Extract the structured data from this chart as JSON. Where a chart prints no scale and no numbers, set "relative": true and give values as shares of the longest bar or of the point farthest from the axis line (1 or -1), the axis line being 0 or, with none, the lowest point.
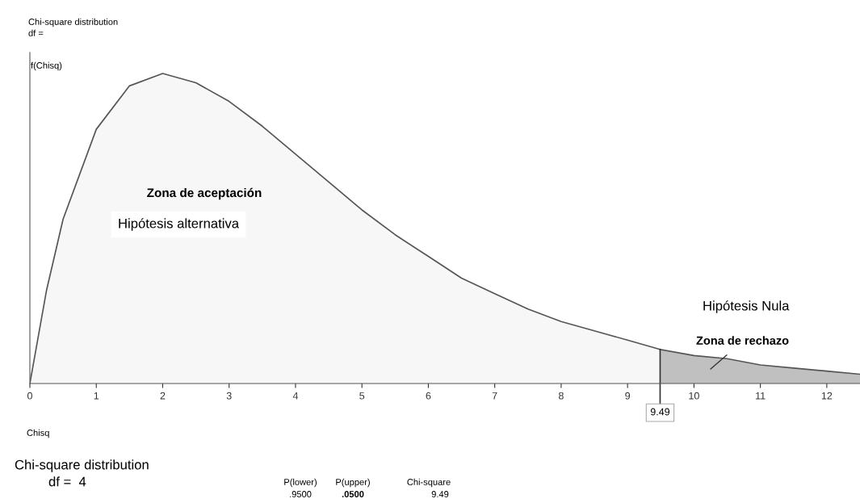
{
  "chart_data": {
    "type": "area",
    "title": "Chi-square distribution",
    "subtitle": "df =",
    "xlabel": "Chisq",
    "ylabel": "f(Chisq)",
    "relative": true,
    "series": [
      {
        "color": "#f7f7f7",
        "x": [
          0,
          0.25,
          0.5,
          1,
          1.5,
          2,
          2.5,
          3,
          3.5,
          4,
          4.5,
          5,
          5.5,
          6,
          6.5,
          7,
          7.5,
          8,
          8.5,
          9,
          9.49
        ],
        "values": [
          0,
          0.3,
          0.53,
          0.82,
          0.96,
          1,
          0.97,
          0.91,
          0.83,
          0.74,
          0.65,
          0.56,
          0.48,
          0.41,
          0.34,
          0.29,
          0.24,
          0.2,
          0.17,
          0.14,
          0.11
        ]
      },
      {
        "color": "#c0c0c0",
        "x": [
          9.49,
          10,
          10.5,
          11,
          11.5,
          12,
          12.5
        ],
        "values": [
          0.11,
          0.09,
          0.08,
          0.06,
          0.05,
          0.04,
          0.03
        ]
      }
    ],
    "ref_lines": [
      {
        "axis": "x",
        "value": 9.49,
        "label": "9.49",
        "color": "#333333"
      }
    ],
    "xlim": [
      0,
      12.5
    ],
    "xticks": [
      0,
      1,
      2,
      3,
      4,
      5,
      6,
      7,
      8,
      9,
      10,
      11,
      12
    ],
    "legend": false,
    "grid": false,
    "annotations": [
      "Zona de aceptación",
      "Hipótesis alternativa",
      "Hipótesis Nula",
      "Zona de rechazo",
      "Chi-square distribution",
      "df =  4",
      "P(lower)",
      ".9500",
      "P(upper)",
      ".0500",
      "Chi-square",
      "9.49"
    ]
  }
}
